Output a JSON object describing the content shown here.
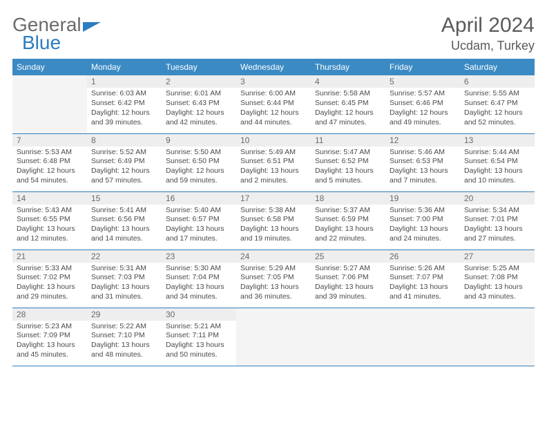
{
  "brand": {
    "part1": "General",
    "part2": "Blue"
  },
  "title": "April 2024",
  "subtitle": "Ucdam, Turkey",
  "colors": {
    "header_bg": "#3b8ac4",
    "header_text": "#ffffff",
    "brand_gray": "#6a6a6a",
    "brand_blue": "#2b7dbf",
    "rule": "#2b7dbf",
    "daynum_bg": "#eeeeee",
    "body_text": "#4a4a4a",
    "empty_bg": "#f4f4f4"
  },
  "day_headers": [
    "Sunday",
    "Monday",
    "Tuesday",
    "Wednesday",
    "Thursday",
    "Friday",
    "Saturday"
  ],
  "weeks": [
    [
      null,
      {
        "n": "1",
        "sr": "6:03 AM",
        "ss": "6:42 PM",
        "dl": "12 hours and 39 minutes."
      },
      {
        "n": "2",
        "sr": "6:01 AM",
        "ss": "6:43 PM",
        "dl": "12 hours and 42 minutes."
      },
      {
        "n": "3",
        "sr": "6:00 AM",
        "ss": "6:44 PM",
        "dl": "12 hours and 44 minutes."
      },
      {
        "n": "4",
        "sr": "5:58 AM",
        "ss": "6:45 PM",
        "dl": "12 hours and 47 minutes."
      },
      {
        "n": "5",
        "sr": "5:57 AM",
        "ss": "6:46 PM",
        "dl": "12 hours and 49 minutes."
      },
      {
        "n": "6",
        "sr": "5:55 AM",
        "ss": "6:47 PM",
        "dl": "12 hours and 52 minutes."
      }
    ],
    [
      {
        "n": "7",
        "sr": "5:53 AM",
        "ss": "6:48 PM",
        "dl": "12 hours and 54 minutes."
      },
      {
        "n": "8",
        "sr": "5:52 AM",
        "ss": "6:49 PM",
        "dl": "12 hours and 57 minutes."
      },
      {
        "n": "9",
        "sr": "5:50 AM",
        "ss": "6:50 PM",
        "dl": "12 hours and 59 minutes."
      },
      {
        "n": "10",
        "sr": "5:49 AM",
        "ss": "6:51 PM",
        "dl": "13 hours and 2 minutes."
      },
      {
        "n": "11",
        "sr": "5:47 AM",
        "ss": "6:52 PM",
        "dl": "13 hours and 5 minutes."
      },
      {
        "n": "12",
        "sr": "5:46 AM",
        "ss": "6:53 PM",
        "dl": "13 hours and 7 minutes."
      },
      {
        "n": "13",
        "sr": "5:44 AM",
        "ss": "6:54 PM",
        "dl": "13 hours and 10 minutes."
      }
    ],
    [
      {
        "n": "14",
        "sr": "5:43 AM",
        "ss": "6:55 PM",
        "dl": "13 hours and 12 minutes."
      },
      {
        "n": "15",
        "sr": "5:41 AM",
        "ss": "6:56 PM",
        "dl": "13 hours and 14 minutes."
      },
      {
        "n": "16",
        "sr": "5:40 AM",
        "ss": "6:57 PM",
        "dl": "13 hours and 17 minutes."
      },
      {
        "n": "17",
        "sr": "5:38 AM",
        "ss": "6:58 PM",
        "dl": "13 hours and 19 minutes."
      },
      {
        "n": "18",
        "sr": "5:37 AM",
        "ss": "6:59 PM",
        "dl": "13 hours and 22 minutes."
      },
      {
        "n": "19",
        "sr": "5:36 AM",
        "ss": "7:00 PM",
        "dl": "13 hours and 24 minutes."
      },
      {
        "n": "20",
        "sr": "5:34 AM",
        "ss": "7:01 PM",
        "dl": "13 hours and 27 minutes."
      }
    ],
    [
      {
        "n": "21",
        "sr": "5:33 AM",
        "ss": "7:02 PM",
        "dl": "13 hours and 29 minutes."
      },
      {
        "n": "22",
        "sr": "5:31 AM",
        "ss": "7:03 PM",
        "dl": "13 hours and 31 minutes."
      },
      {
        "n": "23",
        "sr": "5:30 AM",
        "ss": "7:04 PM",
        "dl": "13 hours and 34 minutes."
      },
      {
        "n": "24",
        "sr": "5:29 AM",
        "ss": "7:05 PM",
        "dl": "13 hours and 36 minutes."
      },
      {
        "n": "25",
        "sr": "5:27 AM",
        "ss": "7:06 PM",
        "dl": "13 hours and 39 minutes."
      },
      {
        "n": "26",
        "sr": "5:26 AM",
        "ss": "7:07 PM",
        "dl": "13 hours and 41 minutes."
      },
      {
        "n": "27",
        "sr": "5:25 AM",
        "ss": "7:08 PM",
        "dl": "13 hours and 43 minutes."
      }
    ],
    [
      {
        "n": "28",
        "sr": "5:23 AM",
        "ss": "7:09 PM",
        "dl": "13 hours and 45 minutes."
      },
      {
        "n": "29",
        "sr": "5:22 AM",
        "ss": "7:10 PM",
        "dl": "13 hours and 48 minutes."
      },
      {
        "n": "30",
        "sr": "5:21 AM",
        "ss": "7:11 PM",
        "dl": "13 hours and 50 minutes."
      },
      null,
      null,
      null,
      null
    ]
  ],
  "labels": {
    "sunrise": "Sunrise:",
    "sunset": "Sunset:",
    "daylight": "Daylight:"
  }
}
